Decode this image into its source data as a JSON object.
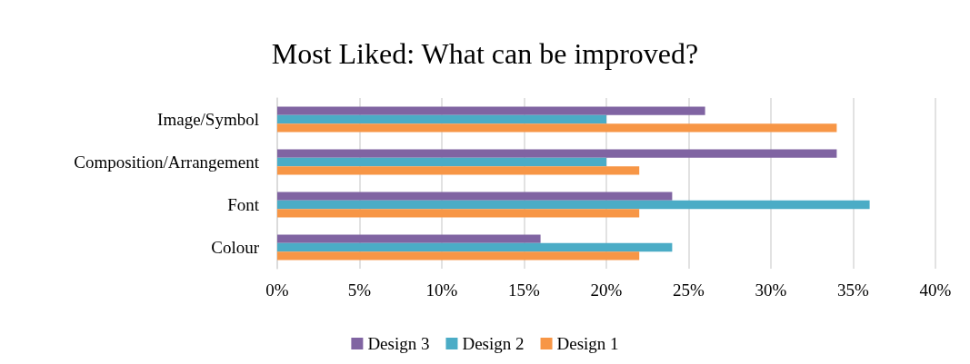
{
  "chart_data": {
    "type": "bar",
    "orientation": "horizontal",
    "title": "Most Liked: What can be improved?",
    "categories": [
      "Image/Symbol",
      "Composition/Arrangement",
      "Font",
      "Colour"
    ],
    "series": [
      {
        "name": "Design 3",
        "color": "#8064a2",
        "values": [
          26,
          34,
          24,
          16
        ]
      },
      {
        "name": "Design 2",
        "color": "#4bacc6",
        "values": [
          20,
          20,
          36,
          24
        ]
      },
      {
        "name": "Design 1",
        "color": "#f79646",
        "values": [
          34,
          22,
          22,
          22
        ]
      }
    ],
    "xlim": [
      0,
      40
    ],
    "xticks": [
      {
        "value": 0,
        "label": "0%"
      },
      {
        "value": 5,
        "label": "5%"
      },
      {
        "value": 10,
        "label": "10%"
      },
      {
        "value": 15,
        "label": "15%"
      },
      {
        "value": 20,
        "label": "20%"
      },
      {
        "value": 25,
        "label": "25%"
      },
      {
        "value": 30,
        "label": "30%"
      },
      {
        "value": 35,
        "label": "35%"
      },
      {
        "value": 40,
        "label": "40%"
      }
    ],
    "grid": "x",
    "legend": "bottom"
  }
}
